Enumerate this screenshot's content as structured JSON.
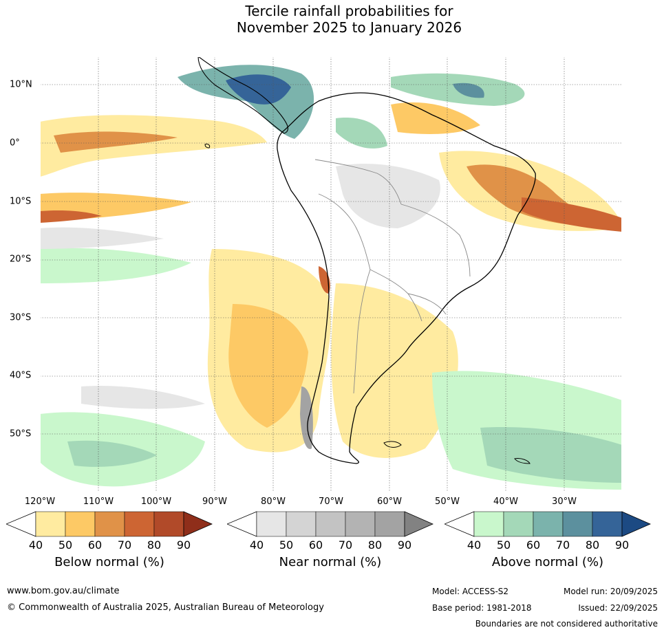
{
  "title": {
    "line1": "Tercile rainfall probabilities for",
    "line2": "November 2025 to January 2026"
  },
  "map": {
    "region": "South America and surrounding oceans",
    "lat_labels": [
      "10°N",
      "0°",
      "10°S",
      "20°S",
      "30°S",
      "40°S",
      "50°S"
    ],
    "lon_labels": [
      "120°W",
      "110°W",
      "100°W",
      "90°W",
      "80°W",
      "70°W",
      "60°W",
      "50°W",
      "40°W",
      "30°W"
    ]
  },
  "legends": [
    {
      "label": "Below normal (%)",
      "ticks": [
        "40",
        "50",
        "60",
        "70",
        "80",
        "90"
      ],
      "colors": [
        "#ffeba0",
        "#fdc965",
        "#e09248",
        "#cd6533",
        "#b14a29",
        "#8f2e1a"
      ]
    },
    {
      "label": "Near normal (%)",
      "ticks": [
        "40",
        "50",
        "60",
        "70",
        "80",
        "90"
      ],
      "colors": [
        "#e6e6e6",
        "#d4d4d4",
        "#c3c3c3",
        "#b3b3b3",
        "#a3a3a3",
        "#828282"
      ]
    },
    {
      "label": "Above normal (%)",
      "ticks": [
        "40",
        "50",
        "60",
        "70",
        "80",
        "90"
      ],
      "colors": [
        "#c9f7cc",
        "#a4d8b8",
        "#7bb3ac",
        "#5c909e",
        "#356498",
        "#1c4a83"
      ]
    }
  ],
  "footer": {
    "website": "www.bom.gov.au/climate",
    "copyright": "© Commonwealth of Australia 2025, Australian Bureau of Meteorology",
    "model": "Model: ACCESS-S2",
    "model_run": "Model run: 20/09/2025",
    "base_period": "Base period: 1981-2018",
    "issued": "Issued: 22/09/2025",
    "disclaimer": "Boundaries are not considered authoritative"
  }
}
